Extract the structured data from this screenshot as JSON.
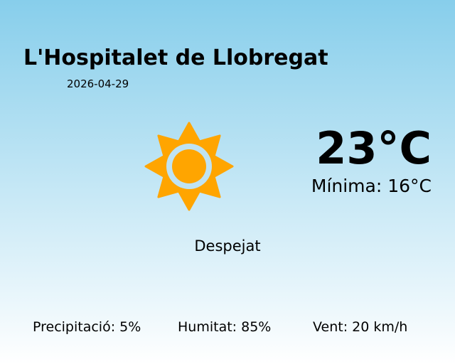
{
  "city": "L'Hospitalet de Llobregat",
  "date": "2026-04-29",
  "temperature": "23°C",
  "minimum": "Mínima: 16°C",
  "condition": "Despejat",
  "icon": "sun-icon",
  "colors": {
    "sun": "#ffa500",
    "sky_top": "#87ceeb",
    "sky_bottom": "#ffffff"
  },
  "stats": {
    "precipitation": "Precipitació: 5%",
    "humidity": "Humitat: 85%",
    "wind": "Vent: 20 km/h"
  }
}
